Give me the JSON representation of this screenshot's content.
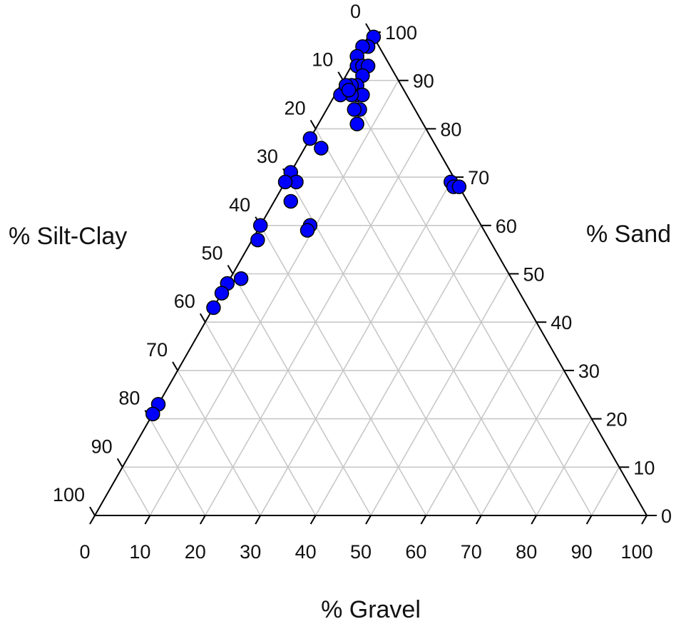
{
  "chart_data": {
    "type": "scatter",
    "subtype": "ternary",
    "axes": {
      "silt_clay": {
        "label": "% Silt-Clay",
        "ticks": [
          "0",
          "10",
          "20",
          "30",
          "40",
          "50",
          "60",
          "70",
          "80",
          "90",
          "100"
        ]
      },
      "sand": {
        "label": "% Sand",
        "ticks": [
          "0",
          "10",
          "20",
          "30",
          "40",
          "50",
          "60",
          "70",
          "80",
          "90",
          "100"
        ]
      },
      "gravel": {
        "label": "% Gravel",
        "ticks": [
          "0",
          "10",
          "20",
          "30",
          "40",
          "50",
          "60",
          "70",
          "80",
          "90",
          "100"
        ]
      }
    },
    "grid": true,
    "grid_step": 10,
    "marker_color": "#0000ff",
    "marker_edge_color": "#000000",
    "points": [
      {
        "gravel": 1,
        "silt_clay": 0,
        "sand": 99
      },
      {
        "gravel": 1,
        "silt_clay": 2,
        "sand": 97
      },
      {
        "gravel": 0,
        "silt_clay": 3,
        "sand": 97
      },
      {
        "gravel": 0,
        "silt_clay": 5,
        "sand": 95
      },
      {
        "gravel": 1,
        "silt_clay": 6,
        "sand": 93
      },
      {
        "gravel": 2,
        "silt_clay": 5,
        "sand": 93
      },
      {
        "gravel": 3,
        "silt_clay": 4,
        "sand": 93
      },
      {
        "gravel": 3,
        "silt_clay": 6,
        "sand": 91
      },
      {
        "gravel": 3,
        "silt_clay": 8,
        "sand": 89
      },
      {
        "gravel": 4,
        "silt_clay": 9,
        "sand": 87
      },
      {
        "gravel": 5,
        "silt_clay": 8,
        "sand": 87
      },
      {
        "gravel": 3,
        "silt_clay": 10,
        "sand": 87
      },
      {
        "gravel": 6,
        "silt_clay": 10,
        "sand": 84
      },
      {
        "gravel": 2,
        "silt_clay": 9,
        "sand": 89
      },
      {
        "gravel": 5,
        "silt_clay": 11,
        "sand": 84
      },
      {
        "gravel": 7,
        "silt_clay": 12,
        "sand": 81
      },
      {
        "gravel": 1,
        "silt_clay": 12,
        "sand": 87
      },
      {
        "gravel": 1,
        "silt_clay": 10,
        "sand": 89
      },
      {
        "gravel": 2,
        "silt_clay": 10,
        "sand": 88
      },
      {
        "gravel": 0,
        "silt_clay": 22,
        "sand": 78
      },
      {
        "gravel": 3,
        "silt_clay": 21,
        "sand": 76
      },
      {
        "gravel": 0,
        "silt_clay": 29,
        "sand": 71
      },
      {
        "gravel": 2,
        "silt_clay": 29,
        "sand": 69
      },
      {
        "gravel": 0,
        "silt_clay": 31,
        "sand": 69
      },
      {
        "gravel": 3,
        "silt_clay": 32,
        "sand": 65
      },
      {
        "gravel": 0,
        "silt_clay": 40,
        "sand": 60
      },
      {
        "gravel": 1,
        "silt_clay": 42,
        "sand": 57
      },
      {
        "gravel": 9,
        "silt_clay": 31,
        "sand": 60
      },
      {
        "gravel": 9,
        "silt_clay": 32,
        "sand": 59
      },
      {
        "gravel": 2,
        "silt_clay": 49,
        "sand": 49
      },
      {
        "gravel": 0,
        "silt_clay": 52,
        "sand": 48
      },
      {
        "gravel": 0,
        "silt_clay": 54,
        "sand": 46
      },
      {
        "gravel": 0,
        "silt_clay": 57,
        "sand": 43
      },
      {
        "gravel": 0,
        "silt_clay": 77,
        "sand": 23
      },
      {
        "gravel": 0,
        "silt_clay": 79,
        "sand": 21
      },
      {
        "gravel": 30,
        "silt_clay": 1,
        "sand": 69
      },
      {
        "gravel": 31,
        "silt_clay": 1,
        "sand": 68
      },
      {
        "gravel": 32,
        "silt_clay": 0,
        "sand": 68
      }
    ]
  }
}
